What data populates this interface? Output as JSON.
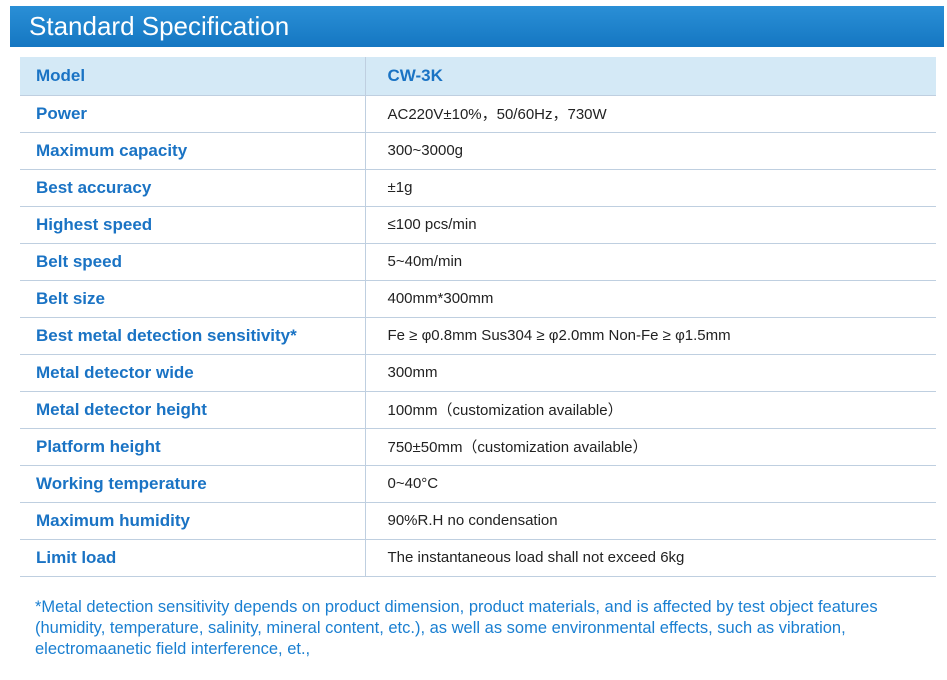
{
  "header": {
    "title": "Standard Specification"
  },
  "table": {
    "head": {
      "label": "Model",
      "value": "CW-3K"
    },
    "rows": [
      {
        "label": "Power",
        "value": "AC220V±10%，50/60Hz，730W"
      },
      {
        "label": "Maximum capacity",
        "value": "300~3000g"
      },
      {
        "label": "Best accuracy",
        "value": "±1g"
      },
      {
        "label": "Highest speed",
        "value": "≤100 pcs/min"
      },
      {
        "label": "Belt speed",
        "value": "5~40m/min"
      },
      {
        "label": "Belt size",
        "value": "400mm*300mm"
      },
      {
        "label": "Best metal detection sensitivity*",
        "value": "Fe ≥ φ0.8mm   Sus304 ≥ φ2.0mm   Non-Fe ≥ φ1.5mm"
      },
      {
        "label": "Metal detector wide",
        "value": "300mm"
      },
      {
        "label": "Metal detector height",
        "value": "100mm（customization available）"
      },
      {
        "label": "Platform height",
        "value": "750±50mm（customization available）"
      },
      {
        "label": "Working temperature",
        "value": "0~40°C"
      },
      {
        "label": "Maximum humidity",
        "value": "90%R.H no condensation"
      },
      {
        "label": "Limit load",
        "value": "The instantaneous load shall not exceed 6kg"
      }
    ]
  },
  "footnote": "*Metal detection sensitivity depends on product dimension, product materials,  and is affected by test object features (humidity, temperature, salinity, mineral content, etc.), as well as some environmental effects, such as vibration, electromaanetic field interference, et.,",
  "colors": {
    "header_bg": "#1a7fcb",
    "label_text": "#1a73c4",
    "head_row_bg": "#d4e9f6",
    "footnote_text": "#1a7fd1"
  }
}
